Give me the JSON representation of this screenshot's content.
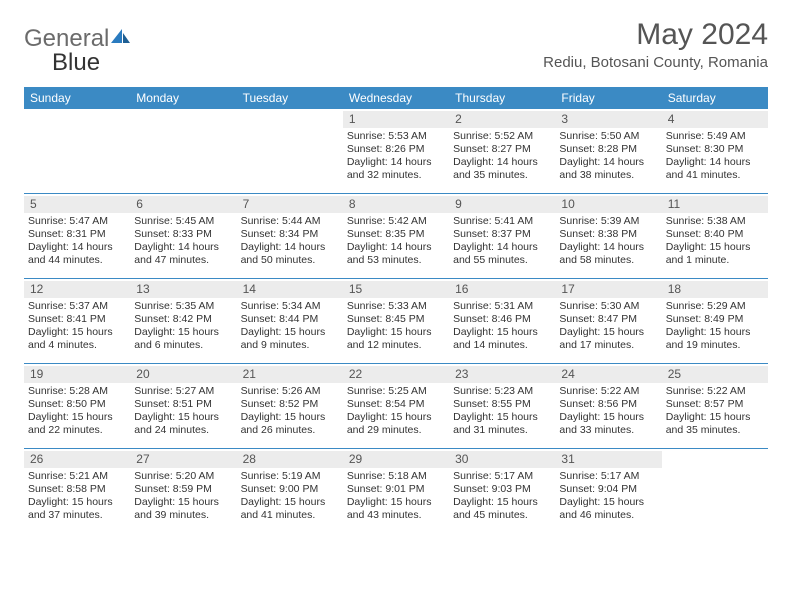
{
  "brand": {
    "first": "General",
    "second": "Blue"
  },
  "title": {
    "month": "May 2024",
    "location": "Rediu, Botosani County, Romania"
  },
  "colors": {
    "header_bg": "#3b8ac4",
    "header_text": "#ffffff",
    "daynum_bg": "#ececec",
    "rule": "#3b8ac4",
    "brand_accent": "#2a7bbf",
    "text": "#333333"
  },
  "weekdays": [
    "Sunday",
    "Monday",
    "Tuesday",
    "Wednesday",
    "Thursday",
    "Friday",
    "Saturday"
  ],
  "weeks": [
    [
      {
        "n": "",
        "sr": "",
        "ss": "",
        "dl": ""
      },
      {
        "n": "",
        "sr": "",
        "ss": "",
        "dl": ""
      },
      {
        "n": "",
        "sr": "",
        "ss": "",
        "dl": ""
      },
      {
        "n": "1",
        "sr": "Sunrise: 5:53 AM",
        "ss": "Sunset: 8:26 PM",
        "dl": "Daylight: 14 hours and 32 minutes."
      },
      {
        "n": "2",
        "sr": "Sunrise: 5:52 AM",
        "ss": "Sunset: 8:27 PM",
        "dl": "Daylight: 14 hours and 35 minutes."
      },
      {
        "n": "3",
        "sr": "Sunrise: 5:50 AM",
        "ss": "Sunset: 8:28 PM",
        "dl": "Daylight: 14 hours and 38 minutes."
      },
      {
        "n": "4",
        "sr": "Sunrise: 5:49 AM",
        "ss": "Sunset: 8:30 PM",
        "dl": "Daylight: 14 hours and 41 minutes."
      }
    ],
    [
      {
        "n": "5",
        "sr": "Sunrise: 5:47 AM",
        "ss": "Sunset: 8:31 PM",
        "dl": "Daylight: 14 hours and 44 minutes."
      },
      {
        "n": "6",
        "sr": "Sunrise: 5:45 AM",
        "ss": "Sunset: 8:33 PM",
        "dl": "Daylight: 14 hours and 47 minutes."
      },
      {
        "n": "7",
        "sr": "Sunrise: 5:44 AM",
        "ss": "Sunset: 8:34 PM",
        "dl": "Daylight: 14 hours and 50 minutes."
      },
      {
        "n": "8",
        "sr": "Sunrise: 5:42 AM",
        "ss": "Sunset: 8:35 PM",
        "dl": "Daylight: 14 hours and 53 minutes."
      },
      {
        "n": "9",
        "sr": "Sunrise: 5:41 AM",
        "ss": "Sunset: 8:37 PM",
        "dl": "Daylight: 14 hours and 55 minutes."
      },
      {
        "n": "10",
        "sr": "Sunrise: 5:39 AM",
        "ss": "Sunset: 8:38 PM",
        "dl": "Daylight: 14 hours and 58 minutes."
      },
      {
        "n": "11",
        "sr": "Sunrise: 5:38 AM",
        "ss": "Sunset: 8:40 PM",
        "dl": "Daylight: 15 hours and 1 minute."
      }
    ],
    [
      {
        "n": "12",
        "sr": "Sunrise: 5:37 AM",
        "ss": "Sunset: 8:41 PM",
        "dl": "Daylight: 15 hours and 4 minutes."
      },
      {
        "n": "13",
        "sr": "Sunrise: 5:35 AM",
        "ss": "Sunset: 8:42 PM",
        "dl": "Daylight: 15 hours and 6 minutes."
      },
      {
        "n": "14",
        "sr": "Sunrise: 5:34 AM",
        "ss": "Sunset: 8:44 PM",
        "dl": "Daylight: 15 hours and 9 minutes."
      },
      {
        "n": "15",
        "sr": "Sunrise: 5:33 AM",
        "ss": "Sunset: 8:45 PM",
        "dl": "Daylight: 15 hours and 12 minutes."
      },
      {
        "n": "16",
        "sr": "Sunrise: 5:31 AM",
        "ss": "Sunset: 8:46 PM",
        "dl": "Daylight: 15 hours and 14 minutes."
      },
      {
        "n": "17",
        "sr": "Sunrise: 5:30 AM",
        "ss": "Sunset: 8:47 PM",
        "dl": "Daylight: 15 hours and 17 minutes."
      },
      {
        "n": "18",
        "sr": "Sunrise: 5:29 AM",
        "ss": "Sunset: 8:49 PM",
        "dl": "Daylight: 15 hours and 19 minutes."
      }
    ],
    [
      {
        "n": "19",
        "sr": "Sunrise: 5:28 AM",
        "ss": "Sunset: 8:50 PM",
        "dl": "Daylight: 15 hours and 22 minutes."
      },
      {
        "n": "20",
        "sr": "Sunrise: 5:27 AM",
        "ss": "Sunset: 8:51 PM",
        "dl": "Daylight: 15 hours and 24 minutes."
      },
      {
        "n": "21",
        "sr": "Sunrise: 5:26 AM",
        "ss": "Sunset: 8:52 PM",
        "dl": "Daylight: 15 hours and 26 minutes."
      },
      {
        "n": "22",
        "sr": "Sunrise: 5:25 AM",
        "ss": "Sunset: 8:54 PM",
        "dl": "Daylight: 15 hours and 29 minutes."
      },
      {
        "n": "23",
        "sr": "Sunrise: 5:23 AM",
        "ss": "Sunset: 8:55 PM",
        "dl": "Daylight: 15 hours and 31 minutes."
      },
      {
        "n": "24",
        "sr": "Sunrise: 5:22 AM",
        "ss": "Sunset: 8:56 PM",
        "dl": "Daylight: 15 hours and 33 minutes."
      },
      {
        "n": "25",
        "sr": "Sunrise: 5:22 AM",
        "ss": "Sunset: 8:57 PM",
        "dl": "Daylight: 15 hours and 35 minutes."
      }
    ],
    [
      {
        "n": "26",
        "sr": "Sunrise: 5:21 AM",
        "ss": "Sunset: 8:58 PM",
        "dl": "Daylight: 15 hours and 37 minutes."
      },
      {
        "n": "27",
        "sr": "Sunrise: 5:20 AM",
        "ss": "Sunset: 8:59 PM",
        "dl": "Daylight: 15 hours and 39 minutes."
      },
      {
        "n": "28",
        "sr": "Sunrise: 5:19 AM",
        "ss": "Sunset: 9:00 PM",
        "dl": "Daylight: 15 hours and 41 minutes."
      },
      {
        "n": "29",
        "sr": "Sunrise: 5:18 AM",
        "ss": "Sunset: 9:01 PM",
        "dl": "Daylight: 15 hours and 43 minutes."
      },
      {
        "n": "30",
        "sr": "Sunrise: 5:17 AM",
        "ss": "Sunset: 9:03 PM",
        "dl": "Daylight: 15 hours and 45 minutes."
      },
      {
        "n": "31",
        "sr": "Sunrise: 5:17 AM",
        "ss": "Sunset: 9:04 PM",
        "dl": "Daylight: 15 hours and 46 minutes."
      },
      {
        "n": "",
        "sr": "",
        "ss": "",
        "dl": ""
      }
    ]
  ]
}
